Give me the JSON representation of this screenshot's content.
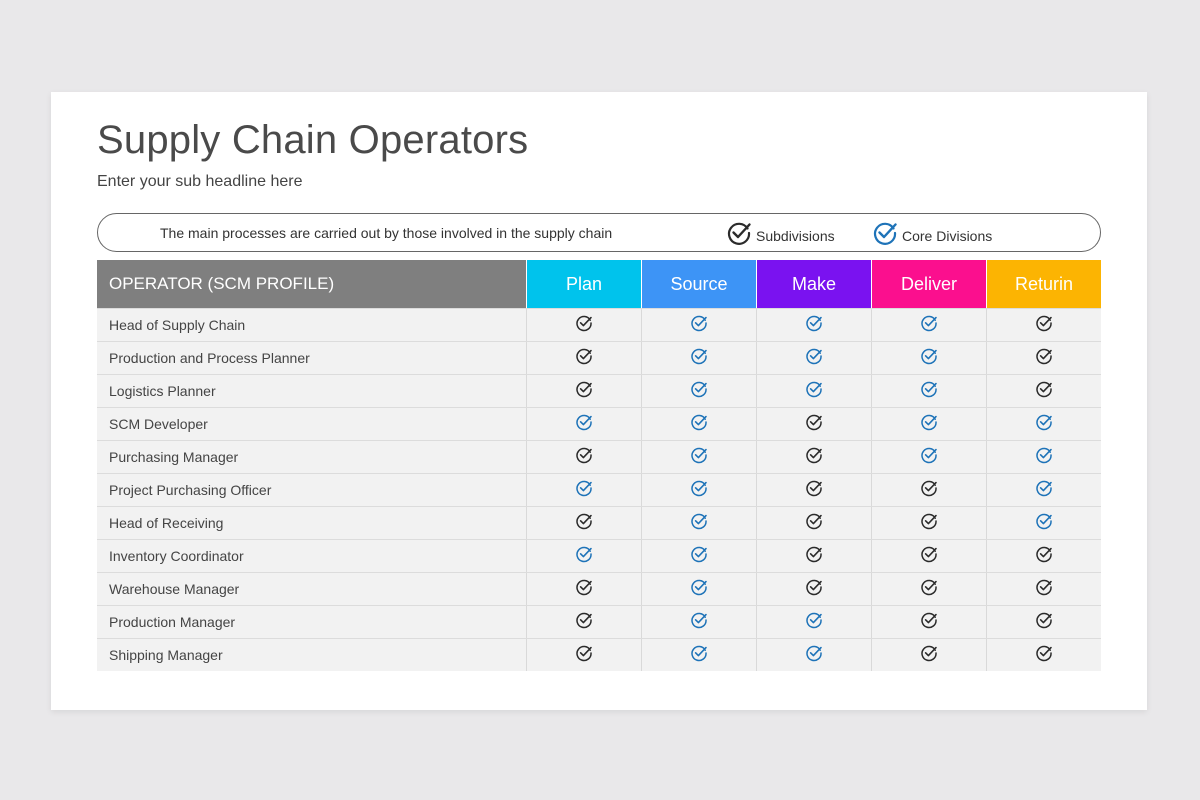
{
  "title": "Supply Chain Operators",
  "subtitle": "Enter your sub headline here",
  "legend": {
    "description": "The main processes are carried out by those involved in the supply chain",
    "subdivisions_label": "Subdivisions",
    "core_label": "Core Divisions",
    "subdivisions_icon": "check-circle-dark-icon",
    "core_icon": "check-circle-blue-icon"
  },
  "colors": {
    "dark_check": "#2b2b2b",
    "blue_check": "#1e73b8",
    "header_operator": "#7f7f7f",
    "plan": "#00c3ec",
    "source": "#3d94f6",
    "make": "#7a12f0",
    "deliver": "#fb0f8e",
    "return": "#fcb402"
  },
  "table": {
    "operator_header": "OPERATOR (SCM PROFILE)",
    "columns": [
      {
        "label": "Plan",
        "color": "#00c3ec"
      },
      {
        "label": "Source",
        "color": "#3d94f6"
      },
      {
        "label": "Make",
        "color": "#7a12f0"
      },
      {
        "label": "Deliver",
        "color": "#fb0f8e"
      },
      {
        "label": "Returin",
        "color": "#fcb402"
      }
    ],
    "rows": [
      {
        "name": "Head of Supply Chain",
        "checks": [
          "s",
          "c",
          "c",
          "c",
          "s"
        ]
      },
      {
        "name": "Production and Process Planner",
        "checks": [
          "s",
          "c",
          "c",
          "c",
          "s"
        ]
      },
      {
        "name": "Logistics Planner",
        "checks": [
          "s",
          "c",
          "c",
          "c",
          "s"
        ]
      },
      {
        "name": "SCM Developer",
        "checks": [
          "c",
          "c",
          "s",
          "c",
          "c"
        ]
      },
      {
        "name": "Purchasing Manager",
        "checks": [
          "s",
          "c",
          "s",
          "c",
          "c"
        ]
      },
      {
        "name": "Project Purchasing Officer",
        "checks": [
          "c",
          "c",
          "s",
          "s",
          "c"
        ]
      },
      {
        "name": "Head of Receiving",
        "checks": [
          "s",
          "c",
          "s",
          "s",
          "c"
        ]
      },
      {
        "name": "Inventory Coordinator",
        "checks": [
          "c",
          "c",
          "s",
          "s",
          "s"
        ]
      },
      {
        "name": "Warehouse Manager",
        "checks": [
          "s",
          "c",
          "s",
          "s",
          "s"
        ]
      },
      {
        "name": "Production Manager",
        "checks": [
          "s",
          "c",
          "c",
          "s",
          "s"
        ]
      },
      {
        "name": "Shipping Manager",
        "checks": [
          "s",
          "c",
          "c",
          "s",
          "s"
        ]
      }
    ]
  }
}
